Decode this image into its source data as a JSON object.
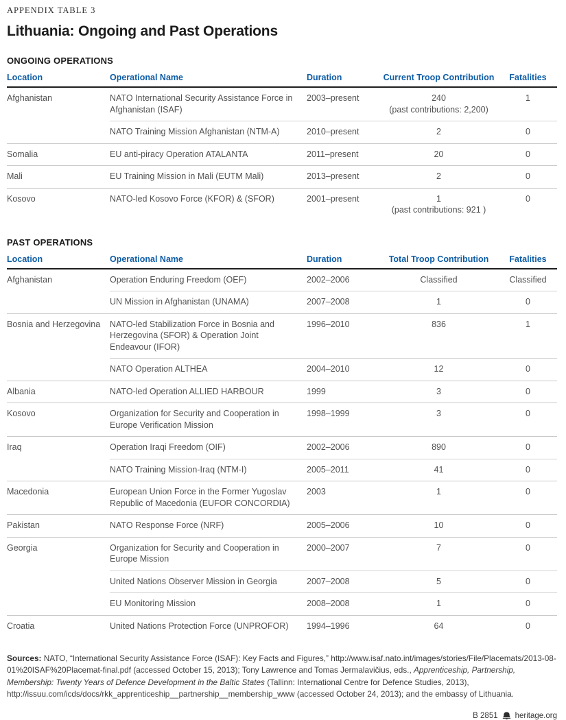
{
  "page": {
    "kicker": "APPENDIX TABLE 3",
    "title": "Lithuania: Ongoing and Past Operations"
  },
  "sections": [
    {
      "heading": "ONGOING OPERATIONS",
      "columns": [
        "Location",
        "Operational Name",
        "Duration",
        "Current Troop Contribution",
        "Fatalities"
      ],
      "groups": [
        {
          "location": "Afghanistan",
          "rows": [
            {
              "name": "NATO International Security Assistance Force in Afghanistan (ISAF)",
              "duration": "2003–present",
              "contribution": "240",
              "contribution_note": "(past contributions: 2,200)",
              "fatalities": "1"
            },
            {
              "name": "NATO Training Mission Afghanistan (NTM-A)",
              "duration": "2010–present",
              "contribution": "2",
              "fatalities": "0"
            }
          ]
        },
        {
          "location": "Somalia",
          "rows": [
            {
              "name": "EU anti-piracy Operation ATALANTA",
              "duration": "2011–present",
              "contribution": "20",
              "fatalities": "0"
            }
          ]
        },
        {
          "location": "Mali",
          "rows": [
            {
              "name": "EU Training Mission in Mali (EUTM Mali)",
              "duration": "2013–present",
              "contribution": "2",
              "fatalities": "0"
            }
          ]
        },
        {
          "location": "Kosovo",
          "rows": [
            {
              "name": "NATO-led Kosovo Force (KFOR) & (SFOR)",
              "duration": "2001–present",
              "contribution": "1",
              "contribution_note": "(past contributions: 921 )",
              "fatalities": "0"
            }
          ]
        }
      ]
    },
    {
      "heading": "PAST OPERATIONS",
      "columns": [
        "Location",
        "Operational Name",
        "Duration",
        "Total Troop Contribution",
        "Fatalities"
      ],
      "groups": [
        {
          "location": "Afghanistan",
          "rows": [
            {
              "name": "Operation Enduring Freedom (OEF)",
              "duration": "2002–2006",
              "contribution": "Classified",
              "fatalities": "Classified"
            },
            {
              "name": "UN Mission in Afghanistan (UNAMA)",
              "duration": "2007–2008",
              "contribution": "1",
              "fatalities": "0"
            }
          ]
        },
        {
          "location": "Bosnia and Herzegovina",
          "rows": [
            {
              "name": "NATO-led Stabilization Force in Bosnia and Herzegovina (SFOR) & Operation Joint Endeavour (IFOR)",
              "duration": "1996–2010",
              "contribution": "836",
              "fatalities": "1"
            },
            {
              "name": "NATO Operation ALTHEA",
              "duration": "2004–2010",
              "contribution": "12",
              "fatalities": "0"
            }
          ]
        },
        {
          "location": "Albania",
          "rows": [
            {
              "name": "NATO-led Operation ALLIED HARBOUR",
              "duration": "1999",
              "contribution": "3",
              "fatalities": "0"
            }
          ]
        },
        {
          "location": "Kosovo",
          "rows": [
            {
              "name": "Organization for Security and Cooperation in Europe Verification Mission",
              "duration": "1998–1999",
              "contribution": "3",
              "fatalities": "0"
            }
          ]
        },
        {
          "location": "Iraq",
          "rows": [
            {
              "name": "Operation Iraqi Freedom (OIF)",
              "duration": "2002–2006",
              "contribution": "890",
              "fatalities": "0"
            },
            {
              "name": "NATO Training Mission-Iraq (NTM-I)",
              "duration": "2005–2011",
              "contribution": "41",
              "fatalities": "0"
            }
          ]
        },
        {
          "location": "Macedonia",
          "rows": [
            {
              "name": "European Union Force in the Former Yugoslav Republic of Macedonia (EUFOR CONCORDIA)",
              "duration": "2003",
              "contribution": "1",
              "fatalities": "0"
            }
          ]
        },
        {
          "location": "Pakistan",
          "rows": [
            {
              "name": "NATO Response Force (NRF)",
              "duration": "2005–2006",
              "contribution": "10",
              "fatalities": "0"
            }
          ]
        },
        {
          "location": "Georgia",
          "rows": [
            {
              "name": "Organization for Security and Cooperation in Europe Mission",
              "duration": "2000–2007",
              "contribution": "7",
              "fatalities": "0"
            },
            {
              "name": "United Nations Observer Mission in Georgia",
              "duration": "2007–2008",
              "contribution": "5",
              "fatalities": "0"
            },
            {
              "name": "EU Monitoring Mission",
              "duration": "2008–2008",
              "contribution": "1",
              "fatalities": "0"
            }
          ]
        },
        {
          "location": "Croatia",
          "rows": [
            {
              "name": "United Nations Protection Force (UNPROFOR)",
              "duration": "1994–1996",
              "contribution": "64",
              "fatalities": "0"
            }
          ]
        }
      ]
    }
  ],
  "sources": {
    "label": "Sources:",
    "before_italic": " NATO, “International Security Assistance Force (ISAF): Key Facts and Figures,” http://www.isaf.nato.int/images/stories/File/Placemats/2013-08-01%20ISAF%20Placemat-final.pdf (accessed October 15, 2013); Tony Lawrence and Tomas Jermalavičius, eds., ",
    "italic": "Apprenticeship, Partnership, Membership: Twenty Years of Defence Development in the Baltic States",
    "after_italic": " (Tallinn: International Centre for Defence Studies, 2013), http://issuu.com/icds/docs/rkk_apprenticeship__partnership__membership_www (accessed October 24, 2013); and the embassy of Lithuania."
  },
  "footer": {
    "doc_id": "B 2851",
    "site": "heritage.org",
    "logo_icon": "heritage-bell-icon"
  },
  "colors": {
    "header_blue": "#0e5ca5",
    "body_gray": "#515151",
    "title_black": "#1b1b1b",
    "rule_light": "#c9c9c9",
    "rule_dark": "#1d1d1d"
  }
}
